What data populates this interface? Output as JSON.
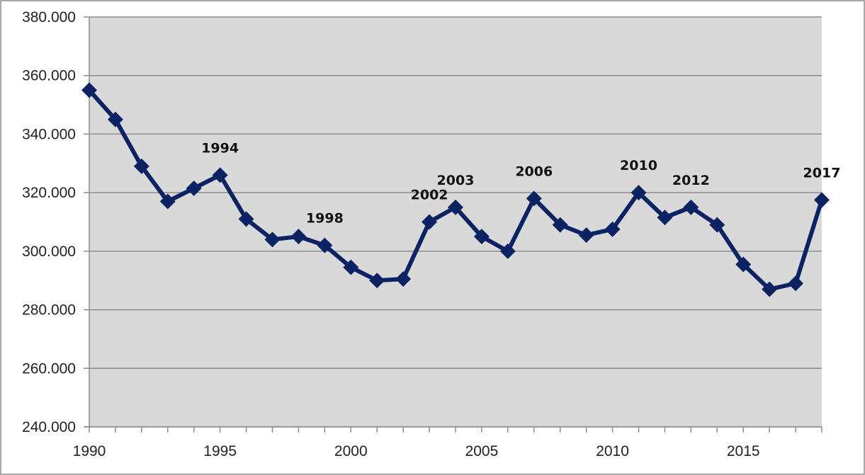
{
  "colors": {
    "plot_bg": "#d9d9d9",
    "line": "#0c2363",
    "grid": "#8c8c8c",
    "axis": "#8c8c8c",
    "frame": "#8c8c8c"
  },
  "chart_data": {
    "type": "line",
    "title": "",
    "xlabel": "",
    "ylabel": "",
    "grid": true,
    "legend": "none",
    "xlim": [
      1990,
      2018
    ],
    "ylim": [
      240000,
      380000
    ],
    "y_ticks": [
      "240.000",
      "260.000",
      "280.000",
      "300.000",
      "320.000",
      "340.000",
      "360.000",
      "380.000"
    ],
    "x_ticks": [
      "1990",
      "1995",
      "2000",
      "2005",
      "2010",
      "2015"
    ],
    "x": [
      1990,
      1991,
      1992,
      1993,
      1994,
      1995,
      1996,
      1997,
      1998,
      1999,
      2000,
      2001,
      2002,
      2003,
      2004,
      2005,
      2006,
      2007,
      2008,
      2009,
      2010,
      2011,
      2012,
      2013,
      2014,
      2015,
      2016,
      2017,
      2018
    ],
    "series": [
      {
        "values": [
          355000,
          345000,
          329000,
          317000,
          321500,
          326000,
          311000,
          304000,
          305000,
          302000,
          294500,
          290000,
          290500,
          310000,
          315000,
          305000,
          300000,
          318000,
          309000,
          305500,
          307500,
          320000,
          311500,
          315000,
          309000,
          295500,
          287000,
          289000,
          317500
        ]
      }
    ],
    "annotations": [
      {
        "text": "1994",
        "x": 1995,
        "y": 326000
      },
      {
        "text": "1998",
        "x": 1999,
        "y": 302000
      },
      {
        "text": "2002",
        "x": 2003,
        "y": 310000
      },
      {
        "text": "2003",
        "x": 2004,
        "y": 315000
      },
      {
        "text": "2006",
        "x": 2007,
        "y": 318000
      },
      {
        "text": "2010",
        "x": 2011,
        "y": 320000
      },
      {
        "text": "2012",
        "x": 2013,
        "y": 315000
      },
      {
        "text": "2017",
        "x": 2018,
        "y": 317500
      }
    ]
  }
}
